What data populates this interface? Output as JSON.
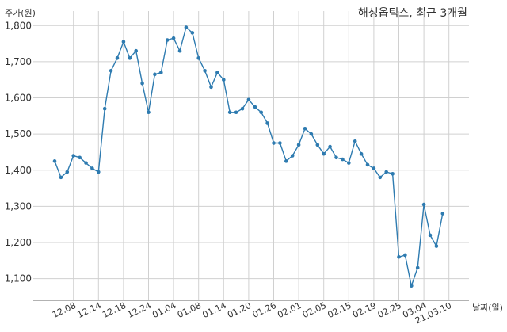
{
  "chart_data": {
    "type": "line",
    "title": "해성옵틱스, 최근 3개월",
    "ylabel": "주가(원)",
    "xlabel": "날짜(일)",
    "ylim": [
      1040,
      1840
    ],
    "yticks": [
      1100,
      1200,
      1300,
      1400,
      1500,
      1600,
      1700,
      1800
    ],
    "ytick_labels": [
      "1,100",
      "1,200",
      "1,300",
      "1,400",
      "1,500",
      "1,600",
      "1,700",
      "1,800"
    ],
    "xtick_labels": [
      "12.08",
      "12.14",
      "12.18",
      "12.24",
      "01.04",
      "01.08",
      "01.14",
      "01.20",
      "01.26",
      "02.01",
      "02.05",
      "02.15",
      "02.19",
      "02.25",
      "03.04",
      "21.03.10"
    ],
    "xtick_indices": [
      3,
      7,
      11,
      15,
      19,
      23,
      27,
      31,
      35,
      39,
      43,
      47,
      51,
      55,
      59,
      63
    ],
    "grid": true,
    "color": "#2e7bb0",
    "series": [
      {
        "values": [
          1425,
          1380,
          1395,
          1440,
          1435,
          1420,
          1405,
          1395,
          1570,
          1675,
          1710,
          1755,
          1710,
          1730,
          1640,
          1560,
          1665,
          1670,
          1760,
          1765,
          1730,
          1795,
          1780,
          1710,
          1675,
          1630,
          1670,
          1650,
          1560,
          1560,
          1570,
          1595,
          1575,
          1560,
          1530,
          1475,
          1475,
          1425,
          1440,
          1470,
          1515,
          1500,
          1470,
          1445,
          1465,
          1435,
          1430,
          1420,
          1480,
          1445,
          1415,
          1405,
          1380,
          1395,
          1390,
          1160,
          1165,
          1080,
          1130,
          1305,
          1220,
          1190,
          1280
        ]
      }
    ]
  }
}
